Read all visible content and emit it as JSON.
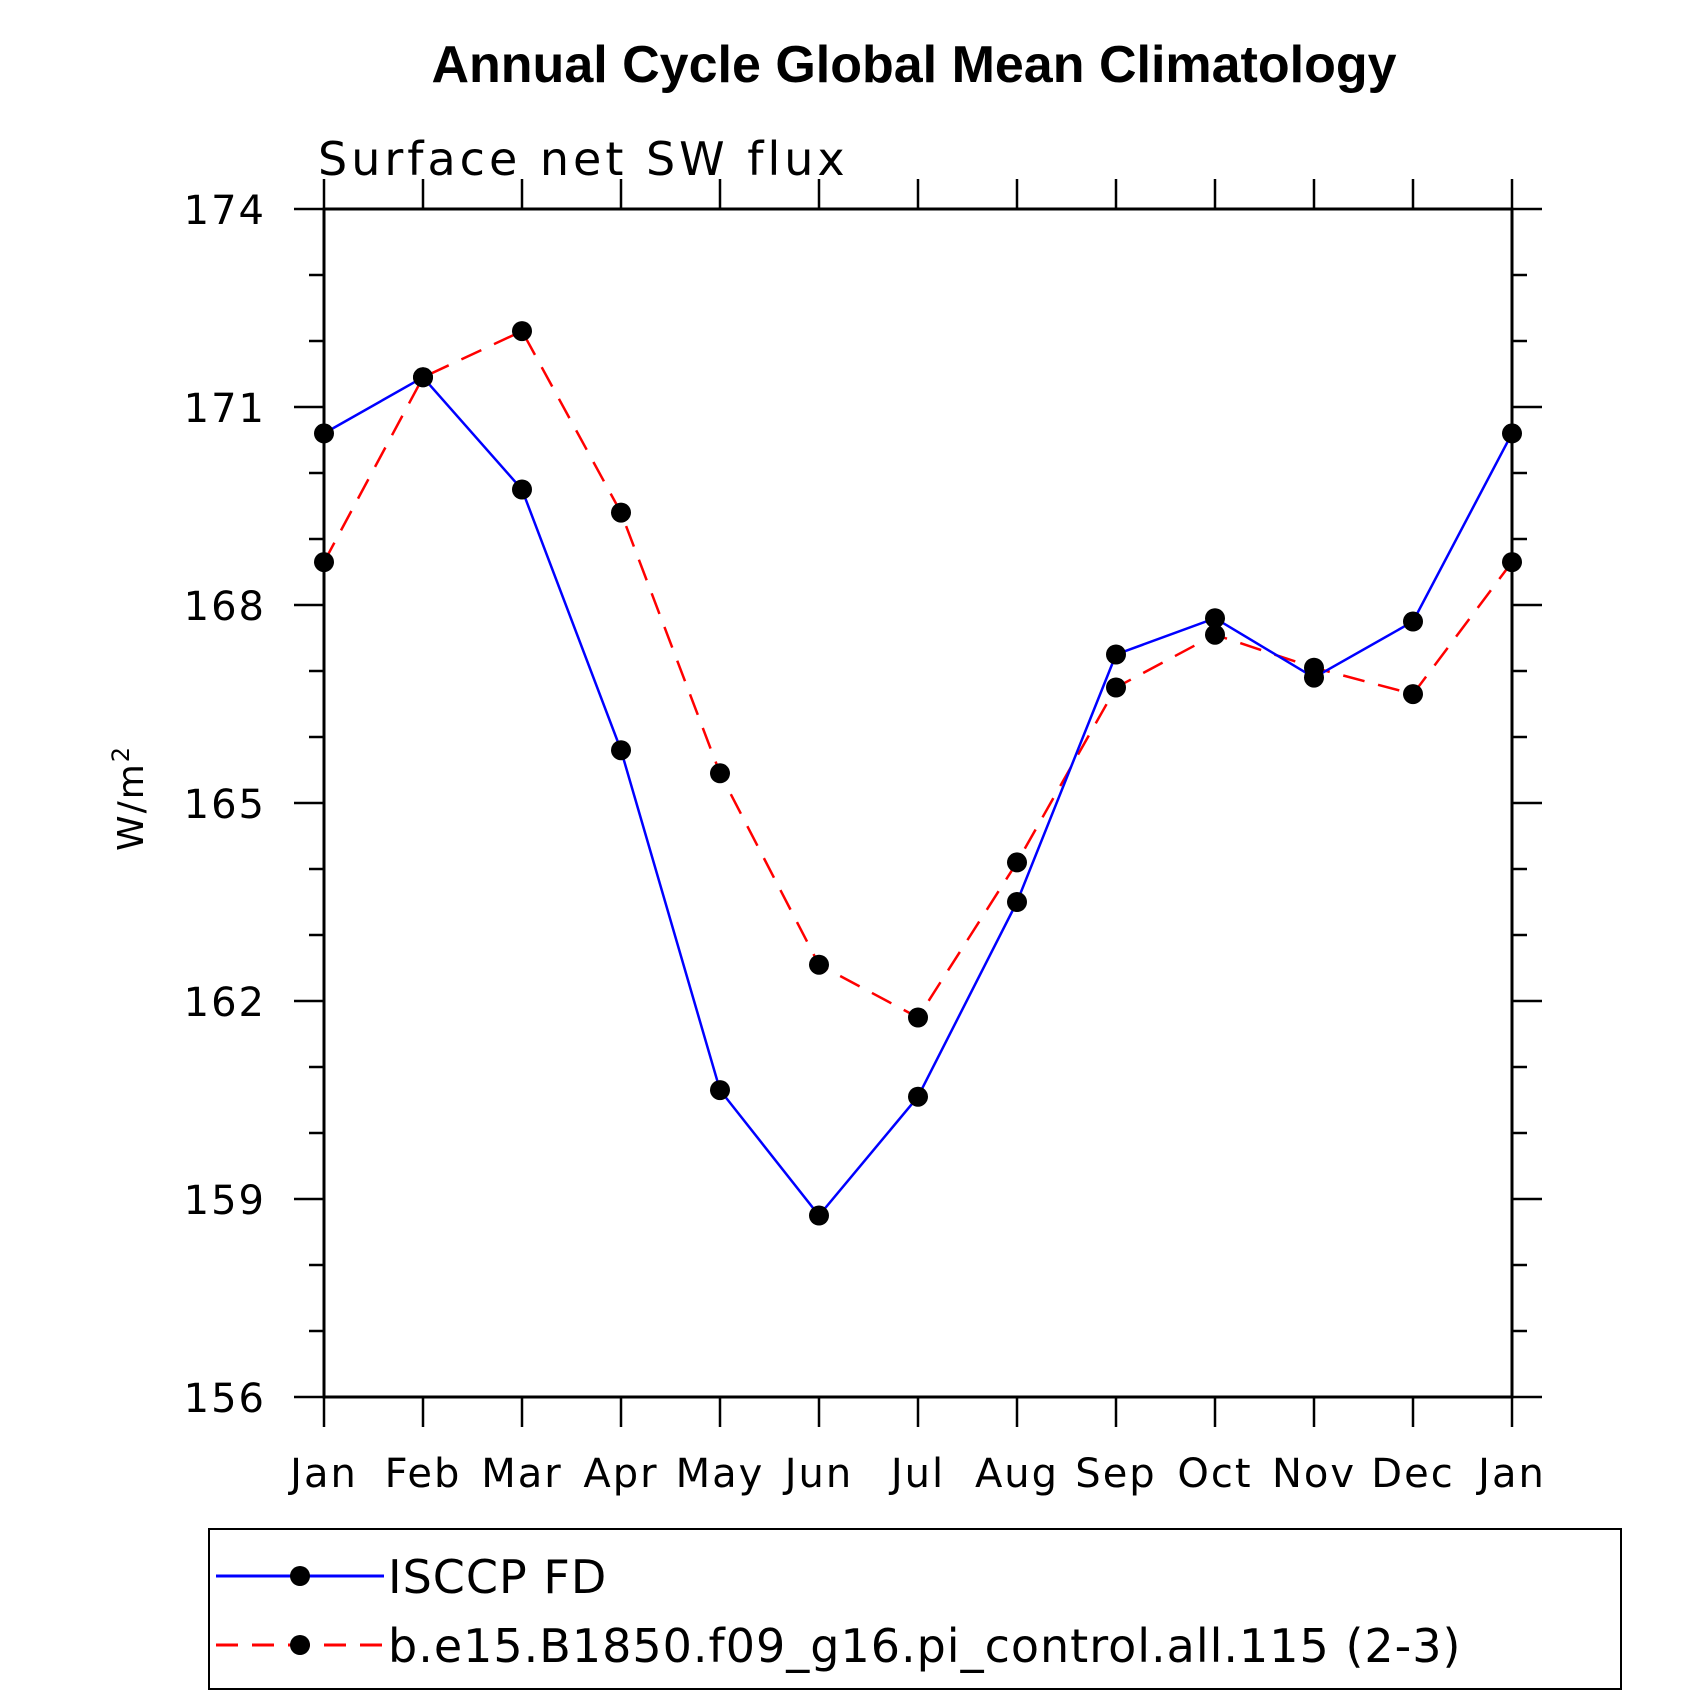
{
  "chart_data": {
    "type": "line",
    "title": "Annual Cycle Global Mean Climatology",
    "subtitle": "Surface net SW flux",
    "ylabel": "W/m",
    "ylabel_superscript": "2",
    "xlabel": "",
    "categories": [
      "Jan",
      "Feb",
      "Mar",
      "Apr",
      "May",
      "Jun",
      "Jul",
      "Aug",
      "Sep",
      "Oct",
      "Nov",
      "Dec",
      "Jan"
    ],
    "ylim": [
      156,
      174
    ],
    "yticks": [
      156,
      159,
      162,
      165,
      168,
      171,
      174
    ],
    "ytick_labels": [
      "156",
      "159",
      "162",
      "165",
      "168",
      "171",
      "174"
    ],
    "legend_position": "bottom",
    "series": [
      {
        "name": "ISCCP FD",
        "color": "#0000ff",
        "dash": "solid",
        "marker": "filled-circle",
        "values": [
          170.6,
          171.45,
          169.75,
          165.8,
          160.65,
          158.75,
          160.55,
          163.5,
          167.25,
          167.8,
          166.9,
          167.75,
          170.6
        ]
      },
      {
        "name": "b.e15.B1850.f09_g16.pi_control.all.115 (2-3)",
        "color": "#ff0000",
        "dash": "dashed",
        "marker": "filled-circle",
        "values": [
          168.65,
          171.45,
          172.15,
          169.4,
          165.45,
          162.55,
          161.75,
          164.1,
          166.75,
          167.55,
          167.05,
          166.65,
          168.65
        ]
      }
    ]
  }
}
